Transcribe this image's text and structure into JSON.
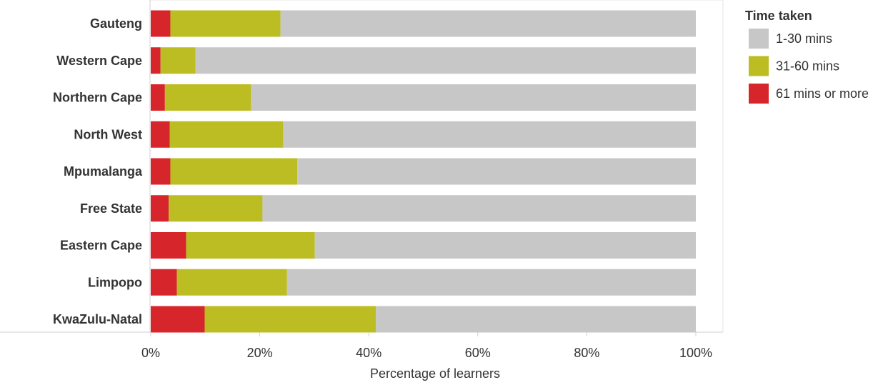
{
  "chart_data": {
    "type": "bar",
    "orientation": "horizontal",
    "stacked": true,
    "xlabel": "Percentage of learners",
    "xlim": [
      0,
      100
    ],
    "x_ticks": [
      "0%",
      "20%",
      "40%",
      "60%",
      "80%",
      "100%"
    ],
    "x_tick_values": [
      0,
      20,
      40,
      60,
      80,
      100
    ],
    "grid": false,
    "legend_placement": "top-right",
    "legend_title": "Time taken",
    "categories": [
      "Gauteng",
      "Western Cape",
      "Northern Cape",
      "North West",
      "Mpumalanga",
      "Free State",
      "Eastern Cape",
      "Limpopo",
      "KwaZulu-Natal"
    ],
    "series": [
      {
        "name": "61 mins or more",
        "color": "#d7262b",
        "values": [
          3.6,
          1.8,
          2.6,
          3.5,
          3.6,
          3.3,
          6.5,
          4.8,
          9.9
        ]
      },
      {
        "name": "31-60 mins",
        "color": "#bcbd22",
        "values": [
          20.2,
          6.4,
          15.8,
          20.8,
          23.3,
          17.2,
          23.6,
          20.2,
          31.4
        ]
      },
      {
        "name": "1-30 mins",
        "color": "#c7c7c7",
        "values": [
          76.2,
          91.8,
          81.6,
          75.7,
          73.1,
          79.5,
          69.9,
          75.0,
          58.7
        ]
      }
    ],
    "legend_order": [
      "1-30 mins",
      "31-60 mins",
      "61 mins or more"
    ]
  }
}
